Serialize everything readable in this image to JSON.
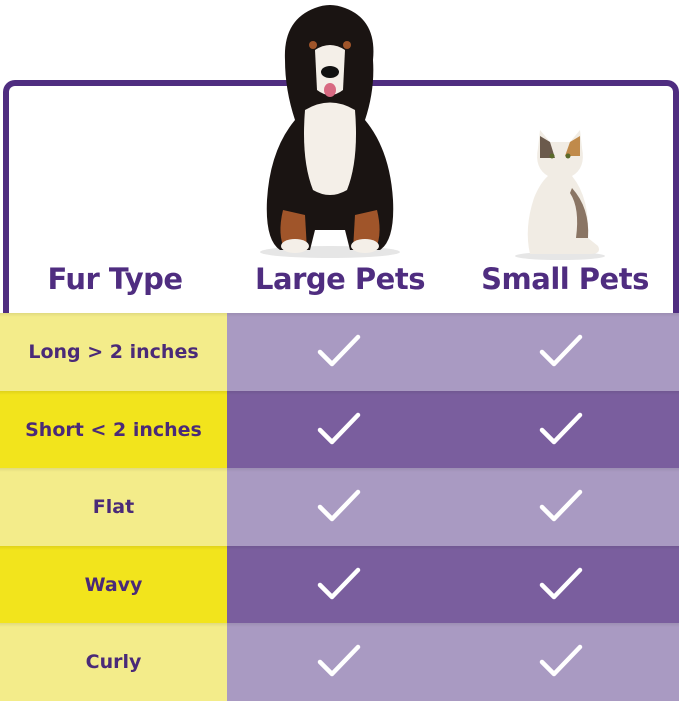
{
  "header": {
    "col1": "Fur Type",
    "col2": "Large Pets",
    "col3": "Small Pets"
  },
  "rows": [
    {
      "label": "Long  > 2 inches",
      "large": true,
      "small": true
    },
    {
      "label": "Short < 2 inches",
      "large": true,
      "small": true
    },
    {
      "label": "Flat",
      "large": true,
      "small": true
    },
    {
      "label": "Wavy",
      "large": true,
      "small": true
    },
    {
      "label": "Curly",
      "large": true,
      "small": true
    }
  ],
  "colors": {
    "frame": "#4f2d80",
    "text": "#4a2a78",
    "yellow_light": "#f3ec8a",
    "yellow": "#f2e41c",
    "purple_light": "#a99ac2",
    "purple_dark": "#7a5e9e",
    "check": "#ffffff"
  },
  "icons": {
    "check": "check-icon",
    "dog": "dog-image",
    "cat": "cat-image"
  }
}
